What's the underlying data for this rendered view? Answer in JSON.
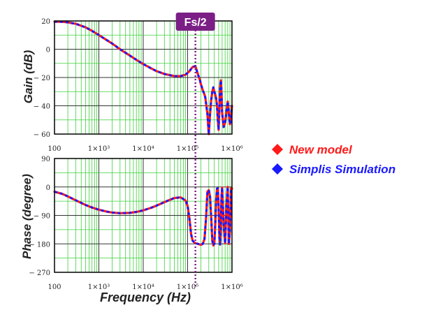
{
  "annotation": {
    "label": "Fs/2",
    "x": 150000,
    "color": "#7b1f86"
  },
  "legend": [
    {
      "label": "New model",
      "color": "#ff1a1a"
    },
    {
      "label": "Simplis Simulation",
      "color": "#1a1aff"
    }
  ],
  "xlabel": "Frequency (Hz)",
  "chart_data": [
    {
      "type": "line",
      "xscale": "log",
      "xlim": [
        100,
        1000000
      ],
      "ylim": [
        -60,
        20
      ],
      "ylabel": "Gain (dB)",
      "yticks": [
        20,
        0,
        -20,
        -40,
        -60
      ],
      "ytick_labels": [
        "20",
        "0",
        "− 20",
        "− 40",
        "− 60"
      ],
      "xtick_labels": [
        "100",
        "1×10³",
        "1×10⁴",
        "1×10⁵",
        "1×10⁶"
      ],
      "grid": true,
      "series": [
        {
          "name": "New model",
          "color": "#ff1a1a",
          "x": [
            100,
            150,
            200,
            300,
            500,
            700,
            1000,
            1500,
            2000,
            3000,
            5000,
            7000,
            10000,
            15000,
            20000,
            30000,
            50000,
            70000,
            90000,
            110000,
            130000,
            150000,
            170000,
            190000,
            200000,
            210000,
            220000,
            240000,
            250000,
            260000,
            280000,
            300000,
            320000,
            340000,
            360000,
            380000,
            400000,
            420000,
            440000,
            460000,
            480000,
            500000,
            520000,
            540000,
            560000,
            580000,
            600000,
            650000,
            700000,
            750000,
            800000,
            850000,
            900000,
            950000,
            1000000
          ],
          "y": [
            19.5,
            19.4,
            19,
            18,
            15.5,
            13,
            10,
            6.5,
            4,
            0,
            -4.5,
            -7.5,
            -10.5,
            -13.5,
            -15.5,
            -17.5,
            -19,
            -19,
            -18,
            -15.5,
            -12.5,
            -12,
            -17.5,
            -22,
            -25,
            -27,
            -29,
            -32,
            -34,
            -38,
            -46,
            -60,
            -46,
            -36,
            -30,
            -27,
            -30,
            -32,
            -35,
            -40,
            -50,
            -57,
            -42,
            -27,
            -22,
            -30,
            -45,
            -55,
            -52,
            -44,
            -37,
            -45,
            -53,
            -50,
            -40
          ]
        },
        {
          "name": "Simplis Simulation",
          "color": "#1a1aff",
          "x": [
            100,
            150,
            200,
            300,
            500,
            700,
            1000,
            1500,
            2000,
            3000,
            5000,
            7000,
            10000,
            15000,
            20000,
            30000,
            50000,
            70000,
            90000,
            110000,
            130000,
            150000,
            170000,
            190000,
            200000,
            210000,
            220000,
            240000,
            250000,
            260000,
            280000,
            300000,
            320000,
            340000,
            360000,
            380000,
            400000,
            420000,
            440000,
            460000,
            480000,
            500000,
            520000,
            540000,
            560000,
            580000,
            600000,
            650000,
            700000,
            750000,
            800000,
            850000,
            900000,
            950000,
            1000000
          ],
          "y": [
            19.5,
            19.4,
            19,
            18,
            15.5,
            13,
            10,
            6.5,
            4,
            0,
            -4.5,
            -7.5,
            -10.5,
            -13.5,
            -15.5,
            -17.5,
            -19,
            -19,
            -18,
            -15.5,
            -12.5,
            -12,
            -17.5,
            -22,
            -25,
            -27,
            -29,
            -32,
            -34,
            -38,
            -46,
            -60,
            -46,
            -36,
            -30,
            -27,
            -30,
            -32,
            -35,
            -40,
            -50,
            -57,
            -42,
            -27,
            -22,
            -30,
            -45,
            -55,
            -52,
            -44,
            -37,
            -45,
            -53,
            -50,
            -40
          ]
        }
      ]
    },
    {
      "type": "line",
      "xscale": "log",
      "xlim": [
        100,
        1000000
      ],
      "ylim": [
        -270,
        90
      ],
      "ylabel": "Phase (degree)",
      "yticks": [
        90,
        0,
        -90,
        -180,
        -270
      ],
      "ytick_labels": [
        "90",
        "0",
        "− 90",
        "− 180",
        "− 270"
      ],
      "xtick_labels": [
        "100",
        "1×10³",
        "1×10⁴",
        "1×10⁵",
        "1×10⁶"
      ],
      "grid": true,
      "series": [
        {
          "name": "New model",
          "color": "#ff1a1a",
          "x": [
            100,
            150,
            200,
            300,
            500,
            700,
            1000,
            1500,
            2000,
            3000,
            5000,
            7000,
            10000,
            15000,
            20000,
            30000,
            50000,
            70000,
            90000,
            100000,
            110000,
            120000,
            130000,
            140000,
            150000,
            170000,
            190000,
            200000,
            220000,
            240000,
            260000,
            280000,
            300000,
            320000,
            340000,
            360000,
            380000,
            400000,
            420000,
            440000,
            460000,
            480000,
            500000,
            520000,
            540000,
            560000,
            580000,
            600000,
            650000,
            700000,
            750000,
            800000,
            850000,
            900000,
            950000,
            1000000
          ],
          "y": [
            -15,
            -22,
            -30,
            -42,
            -57,
            -65,
            -72,
            -78,
            -81,
            -83,
            -82,
            -79,
            -74,
            -66,
            -59,
            -48,
            -35,
            -33,
            -43,
            -60,
            -100,
            -150,
            -170,
            -175,
            -178,
            -180,
            -182,
            -183,
            -180,
            -165,
            -100,
            -15,
            -10,
            -30,
            -95,
            -170,
            -185,
            -180,
            -120,
            -40,
            -5,
            -4,
            -60,
            -160,
            -182,
            -130,
            -30,
            -2,
            -120,
            -178,
            -60,
            0,
            -180,
            -140,
            -5,
            -5
          ]
        },
        {
          "name": "Simplis Simulation",
          "color": "#1a1aff",
          "x": [
            100,
            150,
            200,
            300,
            500,
            700,
            1000,
            1500,
            2000,
            3000,
            5000,
            7000,
            10000,
            15000,
            20000,
            30000,
            50000,
            70000,
            90000,
            100000,
            110000,
            120000,
            130000,
            140000,
            150000,
            170000,
            190000,
            200000,
            220000,
            240000,
            260000,
            280000,
            300000,
            320000,
            340000,
            360000,
            380000,
            400000,
            420000,
            440000,
            460000,
            480000,
            500000,
            520000,
            540000,
            560000,
            580000,
            600000,
            650000,
            700000,
            750000,
            800000,
            850000,
            900000,
            950000,
            1000000
          ],
          "y": [
            -15,
            -22,
            -30,
            -42,
            -57,
            -65,
            -72,
            -78,
            -81,
            -83,
            -82,
            -79,
            -74,
            -66,
            -59,
            -48,
            -35,
            -33,
            -43,
            -60,
            -100,
            -150,
            -170,
            -175,
            -178,
            -180,
            -182,
            -183,
            -180,
            -165,
            -100,
            -15,
            -10,
            -30,
            -95,
            -170,
            -185,
            -180,
            -120,
            -40,
            -5,
            -4,
            -60,
            -160,
            -182,
            -130,
            -30,
            -2,
            -120,
            -178,
            -60,
            0,
            -180,
            -140,
            -5,
            -5
          ]
        }
      ]
    }
  ]
}
